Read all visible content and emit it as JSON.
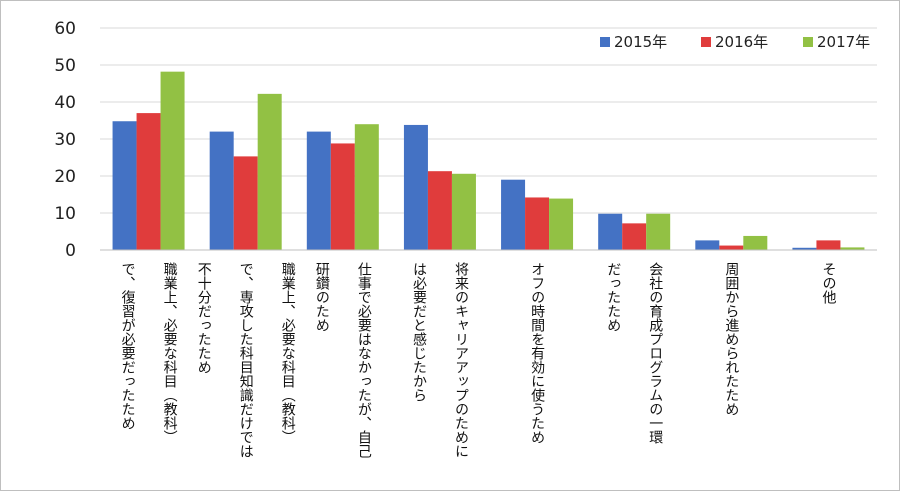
{
  "chart_data": {
    "type": "bar",
    "categories": [
      [
        "職業上、必要な科目（教科）",
        "で、復習が必要だったため"
      ],
      [
        "職業上、必要な科目（教科）",
        "で、専攻した科目知識だけでは",
        "不十分だったため"
      ],
      [
        "仕事で必要はなかったが、自己",
        "研鑽のため"
      ],
      [
        "将来のキャリアアップのために",
        "は必要だと感じたから"
      ],
      [
        "オフの時間を有効に使うため"
      ],
      [
        "会社の育成プログラムの一環",
        "だったため"
      ],
      [
        "周囲から進められたため"
      ],
      [
        "その他"
      ]
    ],
    "series": [
      {
        "name": "2015年",
        "color": "#4472c4",
        "values": [
          34.8,
          32.0,
          32.0,
          33.8,
          19.0,
          9.8,
          2.6,
          0.6
        ]
      },
      {
        "name": "2016年",
        "color": "#e03c3c",
        "values": [
          37.0,
          25.3,
          28.8,
          21.3,
          14.2,
          7.2,
          1.2,
          2.6
        ]
      },
      {
        "name": "2017年",
        "color": "#92c144",
        "values": [
          48.2,
          42.2,
          34.0,
          20.6,
          13.9,
          9.8,
          3.8,
          0.7
        ]
      }
    ],
    "ylim": [
      0,
      60
    ],
    "yticks": [
      0,
      10,
      20,
      30,
      40,
      50,
      60
    ],
    "grid": true,
    "legend_position": "top-right"
  }
}
